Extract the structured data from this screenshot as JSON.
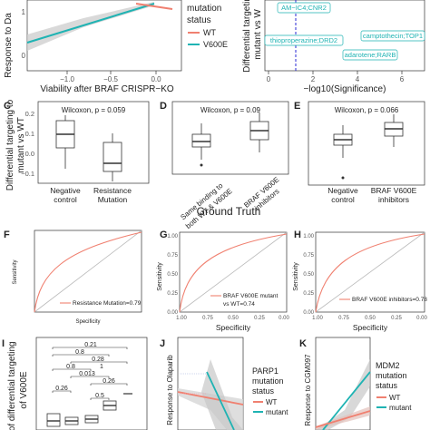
{
  "colors": {
    "wt": "#f08070",
    "v600e": "#1fb3b3",
    "grey": "#bdbdbd"
  },
  "panels": {
    "C": "C",
    "D": "D",
    "E": "E",
    "F": "F",
    "G": "G",
    "H": "H",
    "I": "I",
    "J": "J",
    "K": "K"
  },
  "top": {
    "a_ylabel": "Response to Da",
    "a_xlabel": "Viability after BRAF CRISPR−KO",
    "a_xticks": [
      "−1.0",
      "−0.5",
      "0.0"
    ],
    "a_yticks": [
      "1",
      "0"
    ],
    "a_legend_title1": "mutation",
    "a_legend_title2": "status",
    "a_legend_items": [
      "WT",
      "V600E"
    ],
    "b_ylabel1": "Differential targetin",
    "b_ylabel2": "mutant vs W",
    "b_xlabel": "−log10(Significance)",
    "b_xticks": [
      "0",
      "2",
      "4",
      "6"
    ],
    "b_labels": [
      "AM−IC4;CNR2",
      "thioproperazine;DRD2",
      "camptothecin;TOP1",
      "adarotene;RARB"
    ]
  },
  "boxes": {
    "ylabel1": "Differential targeting to",
    "ylabel2": "mutant vs WT",
    "yticks": [
      "0.2",
      "0.1",
      "0.0",
      "−0.1"
    ],
    "c_stat": "Wilcoxon, p = 0.059",
    "c_cats": [
      [
        "Negative",
        "control"
      ],
      [
        "Resistance",
        "Mutation"
      ]
    ],
    "d_stat": "Wilcoxon, p = 0.09",
    "d_cats": [
      [
        "Same binding to",
        "both WT & V600E"
      ],
      [
        "BRAF V600E",
        "inhibitors"
      ]
    ],
    "e_stat": "Wilcoxon, p = 0.066",
    "e_cats": [
      [
        "Negative",
        "control"
      ],
      [
        "BRAF V600E",
        "inhibitors"
      ]
    ]
  },
  "ground_truth": "Ground Truth",
  "roc": {
    "ylabel": "Sensitivity",
    "xlabel": "Specificity",
    "f_ticks": [
      "1.00",
      "0.75",
      "0.50",
      "0.25",
      "0.00"
    ],
    "f_legend": "Resistance Mutation=0.79",
    "g_legend1": "BRAF V600E mutant",
    "g_legend2": "vs WT=0.74",
    "h_legend": "BRAF V600E inhibitors=0.78"
  },
  "bottom": {
    "i_ylabel1": "h of differential targeting",
    "i_ylabel2": "of V600E",
    "i_pvals": [
      "0.21",
      "0.8",
      "0.28",
      "0.8",
      "1",
      "0.013",
      "0.26",
      "0.26",
      "0.5"
    ],
    "j_ylabel": "Response to Olaparib",
    "j_legend_title1": "PARP1",
    "j_legend_title2": "mutation",
    "j_legend_title3": "status",
    "j_legend_items": [
      "WT",
      "mutant"
    ],
    "k_ylabel": "Response to CGM097",
    "k_legend_title1": "MDM2",
    "k_legend_title2": "mutation",
    "k_legend_title3": "status",
    "k_legend_items": [
      "WT",
      "mutant"
    ]
  }
}
